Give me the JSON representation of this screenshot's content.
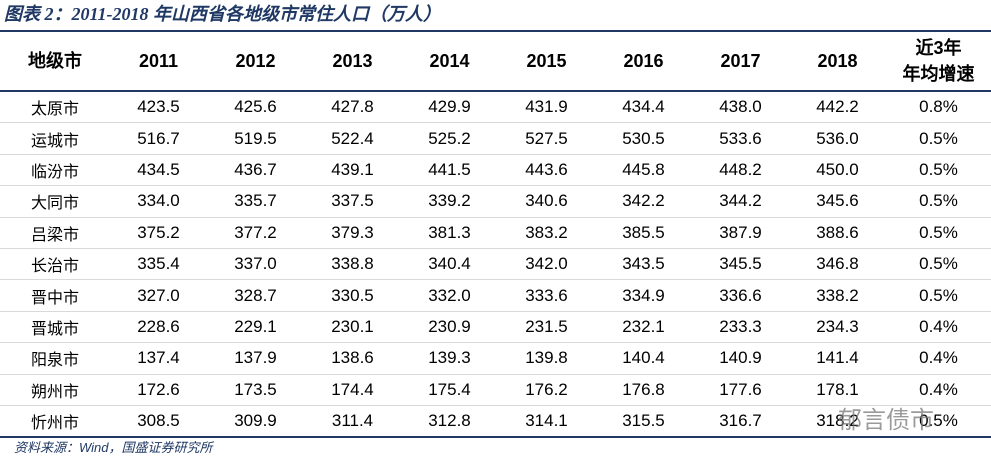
{
  "header": {
    "title": "图表 2：2011-2018 年山西省各地级市常住人口（万人）"
  },
  "table": {
    "columns": [
      "地级市",
      "2011",
      "2012",
      "2013",
      "2014",
      "2015",
      "2016",
      "2017",
      "2018",
      "近3年\n年均增速"
    ],
    "rows": [
      [
        "太原市",
        "423.5",
        "425.6",
        "427.8",
        "429.9",
        "431.9",
        "434.4",
        "438.0",
        "442.2",
        "0.8%"
      ],
      [
        "运城市",
        "516.7",
        "519.5",
        "522.4",
        "525.2",
        "527.5",
        "530.5",
        "533.6",
        "536.0",
        "0.5%"
      ],
      [
        "临汾市",
        "434.5",
        "436.7",
        "439.1",
        "441.5",
        "443.6",
        "445.8",
        "448.2",
        "450.0",
        "0.5%"
      ],
      [
        "大同市",
        "334.0",
        "335.7",
        "337.5",
        "339.2",
        "340.6",
        "342.2",
        "344.2",
        "345.6",
        "0.5%"
      ],
      [
        "吕梁市",
        "375.2",
        "377.2",
        "379.3",
        "381.3",
        "383.2",
        "385.5",
        "387.9",
        "388.6",
        "0.5%"
      ],
      [
        "长治市",
        "335.4",
        "337.0",
        "338.8",
        "340.4",
        "342.0",
        "343.5",
        "345.5",
        "346.8",
        "0.5%"
      ],
      [
        "晋中市",
        "327.0",
        "328.7",
        "330.5",
        "332.0",
        "333.6",
        "334.9",
        "336.6",
        "338.2",
        "0.5%"
      ],
      [
        "晋城市",
        "228.6",
        "229.1",
        "230.1",
        "230.9",
        "231.5",
        "232.1",
        "233.3",
        "234.3",
        "0.4%"
      ],
      [
        "阳泉市",
        "137.4",
        "137.9",
        "138.6",
        "139.3",
        "139.8",
        "140.4",
        "140.9",
        "141.4",
        "0.4%"
      ],
      [
        "朔州市",
        "172.6",
        "173.5",
        "174.4",
        "175.4",
        "176.2",
        "176.8",
        "177.6",
        "178.1",
        "0.4%"
      ],
      [
        "忻州市",
        "308.5",
        "309.9",
        "311.4",
        "312.8",
        "314.1",
        "315.5",
        "316.7",
        "318.2",
        "0.5%"
      ]
    ]
  },
  "source": "资料来源：Wind，国盛证券研究所",
  "watermark": "郁言债市"
}
